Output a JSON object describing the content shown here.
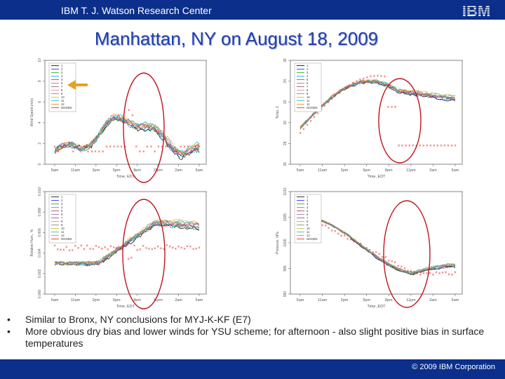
{
  "header": {
    "title": "IBM T. J. Watson Research Center",
    "logo_text": "IBM"
  },
  "slide": {
    "title": "Manhattan, NY on August 18, 2009"
  },
  "charts": {
    "top_left": {
      "ylabel": "Wind Speed (m/s)",
      "xlabel": "Time, EDT",
      "yticks": [
        "0",
        "2",
        "4",
        "6",
        "8",
        "10"
      ]
    },
    "top_right": {
      "ylabel": "Temp, C",
      "xlabel": "Time, EDT",
      "yticks": [
        "26",
        "28",
        "30",
        "32",
        "34",
        "36"
      ]
    },
    "bottom_left": {
      "ylabel": "Relative Hum., %",
      "xlabel": "Time, EDT",
      "yticks": [
        "0.000",
        "0.002",
        "0.004",
        "0.006",
        "0.008",
        "0.010"
      ]
    },
    "bottom_right": {
      "ylabel": "Pressure, hPa",
      "xlabel": "Time, EDT",
      "yticks": [
        "990",
        "995",
        "1000",
        "1005",
        "1010"
      ]
    },
    "xticks": [
      "5am",
      "11am",
      "2pm",
      "5pm",
      "8pm",
      "11pm",
      "2am",
      "5am"
    ],
    "legend": [
      "1",
      "2",
      "3",
      "4",
      "5",
      "6",
      "7",
      "8",
      "9",
      "10",
      "11",
      "12",
      "WXOBS"
    ]
  },
  "bullets": [
    "Similar to Bronx, NY conclusions  for MYJ-K-KF (E7)",
    "More obvious dry bias and lower winds for YSU scheme; for afternoon - also slight positive bias in surface temperatures"
  ],
  "footer": {
    "copyright": "© 2009 IBM Corporation"
  },
  "colors": {
    "bar": "#0b2f8a",
    "title": "#1f3fb0",
    "obs": "#e41a1c",
    "oval": "#c0141c",
    "arrow": "#e8a020"
  }
}
